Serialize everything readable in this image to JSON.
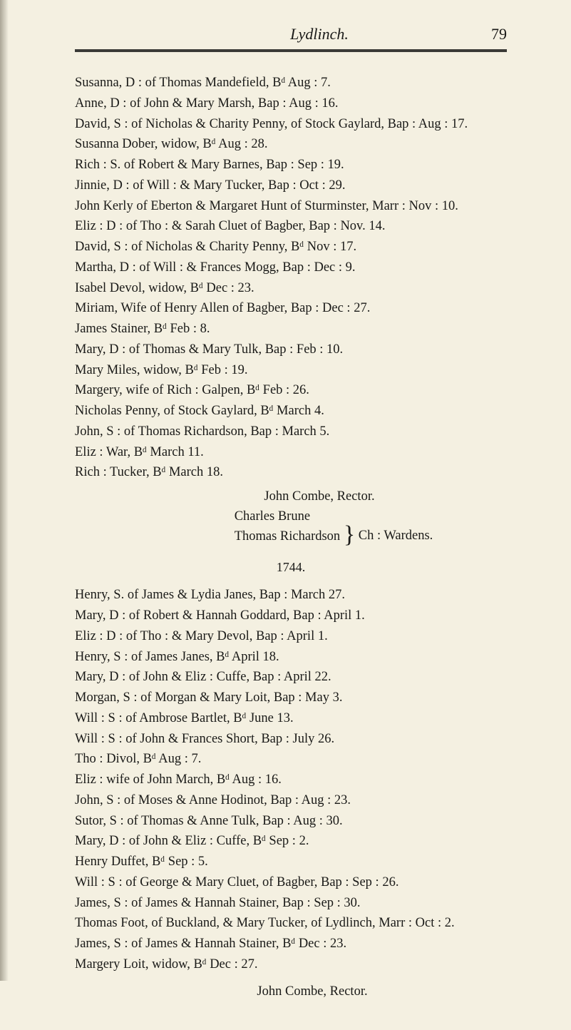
{
  "header": {
    "title": "Lydlinch.",
    "page": "79"
  },
  "entries1": [
    "Susanna, D : of Thomas Mandefield, Bᵈ Aug : 7.",
    "Anne, D : of John & Mary Marsh, Bap : Aug : 16.",
    "David, S : of Nicholas & Charity Penny, of Stock Gaylard, Bap : Aug : 17.",
    "Susanna Dober, widow, Bᵈ Aug : 28.",
    "Rich : S. of Robert & Mary Barnes, Bap : Sep : 19.",
    "Jinnie, D : of Will : & Mary Tucker, Bap : Oct : 29.",
    "John Kerly of Eberton & Margaret Hunt of Sturminster, Marr : Nov : 10.",
    "Eliz : D : of Tho : & Sarah Cluet of Bagber, Bap : Nov. 14.",
    "David, S : of Nicholas & Charity Penny, Bᵈ Nov : 17.",
    "Martha, D : of Will : & Frances Mogg, Bap : Dec : 9.",
    "Isabel Devol, widow, Bᵈ Dec : 23.",
    "Miriam, Wife of Henry Allen of Bagber, Bap : Dec : 27.",
    "James Stainer, Bᵈ Feb : 8.",
    "Mary, D : of Thomas & Mary Tulk, Bap : Feb : 10.",
    "Mary Miles, widow, Bᵈ Feb : 19.",
    "Margery, wife of Rich : Galpen, Bᵈ Feb : 26.",
    "Nicholas Penny, of Stock Gaylard, Bᵈ March 4.",
    "John, S : of Thomas Richardson, Bap : March 5.",
    "Eliz : War, Bᵈ March 11.",
    "Rich : Tucker, Bᵈ March 18."
  ],
  "signature1": {
    "rector": "John Combe, Rector.",
    "warden1": "Charles Brune",
    "warden2": "Thomas Richardson",
    "wardenLabel": "Ch : Wardens."
  },
  "year": "1744.",
  "entries2": [
    "Henry, S. of James & Lydia Janes, Bap : March 27.",
    "Mary, D : of Robert & Hannah Goddard, Bap : April 1.",
    "Eliz : D : of Tho : & Mary Devol, Bap : April 1.",
    "Henry, S : of James Janes, Bᵈ April 18.",
    "Mary, D : of John & Eliz : Cuffe, Bap : April 22.",
    "Morgan, S : of Morgan & Mary Loit, Bap : May 3.",
    "Will : S : of Ambrose Bartlet, Bᵈ June 13.",
    "Will : S : of John & Frances Short, Bap : July 26.",
    "Tho : Divol, Bᵈ Aug : 7.",
    "Eliz : wife of John March, Bᵈ Aug : 16.",
    "John, S : of Moses & Anne Hodinot, Bap : Aug : 23.",
    "Sutor, S : of Thomas & Anne Tulk, Bap : Aug : 30.",
    "Mary, D : of John & Eliz : Cuffe, Bᵈ Sep : 2.",
    "Henry Duffet, Bᵈ Sep : 5.",
    "Will : S : of George & Mary Cluet, of Bagber, Bap : Sep : 26.",
    "James, S : of James & Hannah Stainer, Bap : Sep : 30.",
    "Thomas Foot, of Buckland, & Mary Tucker, of Lydlinch, Marr : Oct : 2.",
    "James, S : of James & Hannah Stainer, Bᵈ Dec : 23.",
    "Margery Loit, widow, Bᵈ Dec : 27."
  ],
  "signature2": {
    "rector": "John Combe, Rector."
  },
  "colors": {
    "background": "#f4f0e1",
    "text": "#1a1a18",
    "rule": "#3a3a36"
  },
  "typography": {
    "body_fontsize": 18.5,
    "header_fontsize": 22,
    "line_height": 1.5,
    "font_family": "Georgia serif"
  }
}
